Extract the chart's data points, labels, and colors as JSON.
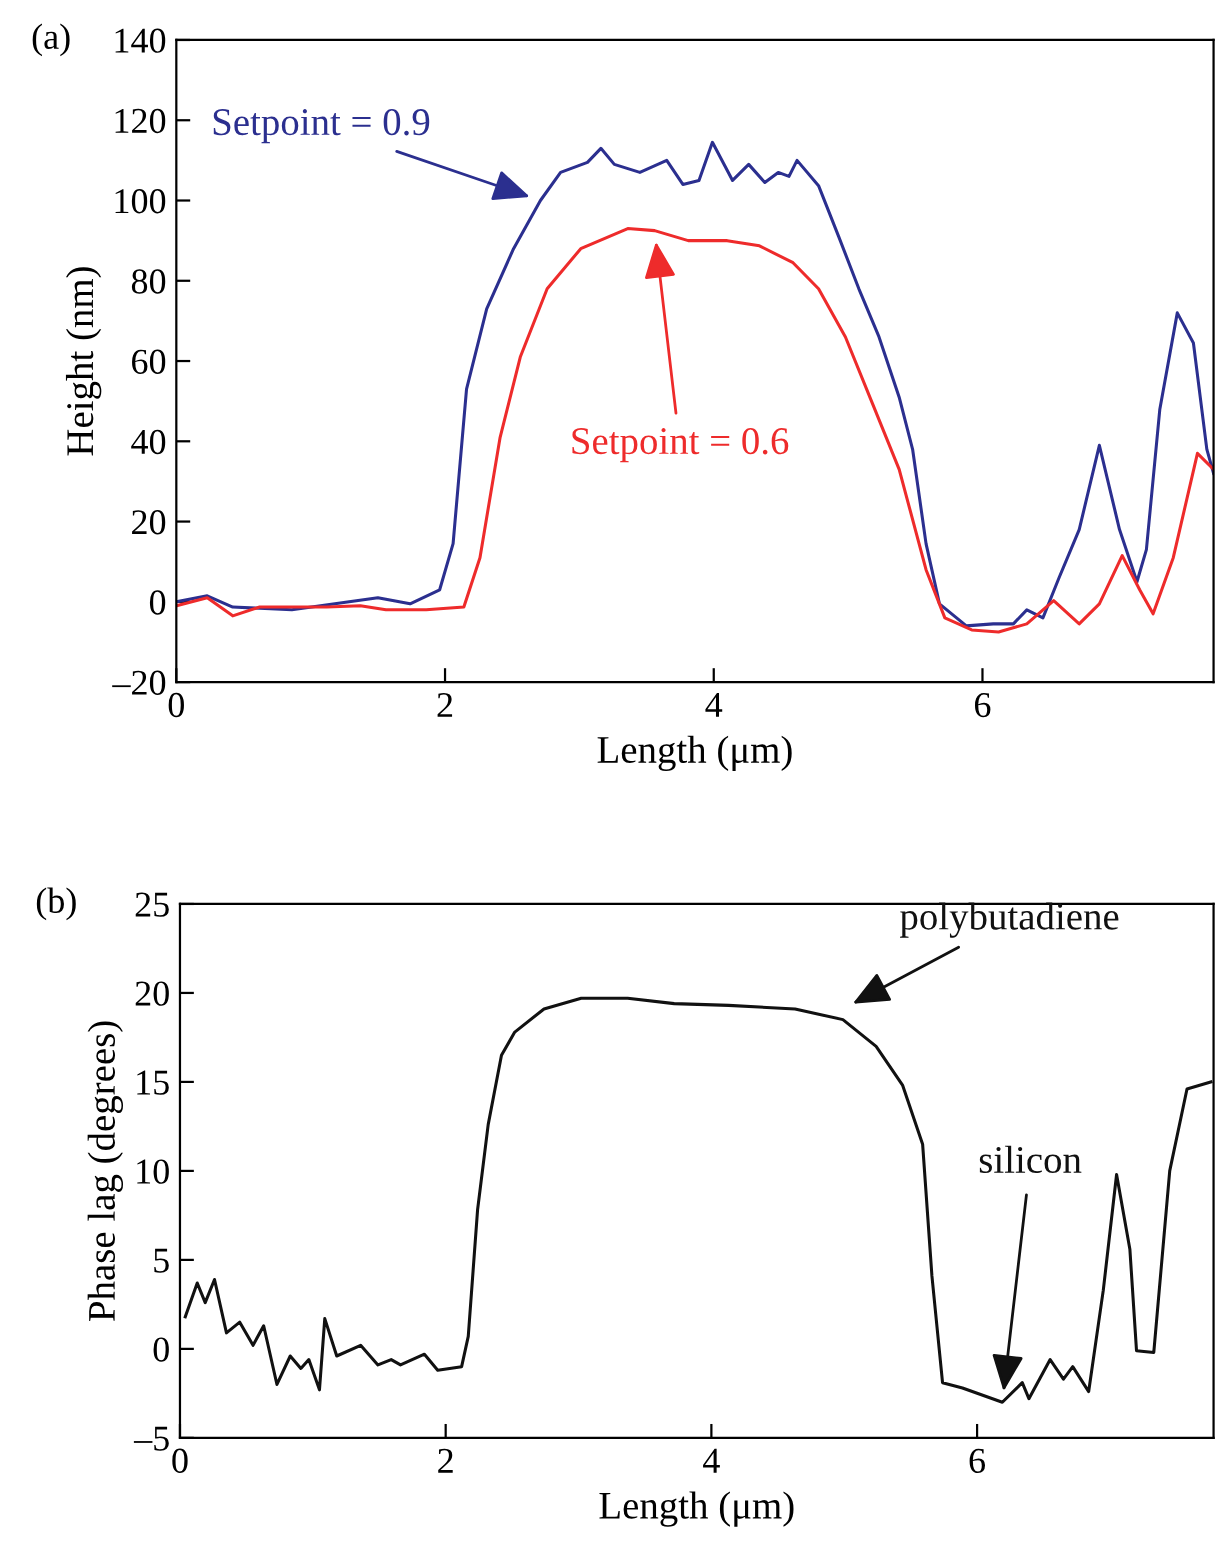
{
  "chart_data": [
    {
      "type": "line",
      "title": "(a)",
      "xlabel": "Length (μm)",
      "ylabel": "Height (nm)",
      "xlim": [
        0,
        7.72
      ],
      "ylim": [
        -20,
        140
      ],
      "xticks": [
        0,
        2,
        4,
        6
      ],
      "yticks": [
        {
          "value": -20,
          "label": "–20"
        },
        0,
        20,
        40,
        60,
        80,
        100,
        120,
        140
      ],
      "grid": false,
      "legend": false,
      "annotations": [
        {
          "text": "Setpoint = 0.9",
          "x": 2.71,
          "y": 100
        },
        {
          "text": "Setpoint = 0.6",
          "x": 3.56,
          "y": 92.5
        }
      ],
      "series": [
        {
          "color": "#2b2f8f",
          "x": [
            0,
            0.23,
            0.42,
            0.86,
            1.5,
            1.74,
            1.96,
            2.06,
            2.16,
            2.31,
            2.51,
            2.71,
            2.86,
            3.06,
            3.16,
            3.26,
            3.45,
            3.65,
            3.77,
            3.89,
            3.99,
            4.14,
            4.26,
            4.38,
            4.48,
            4.56,
            4.62,
            4.78,
            4.93,
            5.08,
            5.23,
            5.38,
            5.48,
            5.58,
            5.68,
            5.88,
            6.08,
            6.23,
            6.33,
            6.45,
            6.57,
            6.72,
            6.87,
            7.02,
            7.15,
            7.22,
            7.32,
            7.45,
            7.57,
            7.67,
            7.72
          ],
          "values": [
            0,
            1.5,
            -1.3,
            -2,
            1,
            -0.5,
            3,
            14.5,
            53,
            73,
            88,
            100,
            107,
            109.5,
            113,
            109,
            107,
            110,
            104,
            105,
            114.5,
            105,
            109,
            104.5,
            107,
            106,
            110,
            103.7,
            91,
            78,
            66,
            51,
            38,
            14.5,
            -0.5,
            -6,
            -5.5,
            -5.5,
            -2,
            -4,
            6,
            18,
            39,
            18,
            5,
            13,
            48,
            72,
            64.5,
            38,
            32
          ]
        },
        {
          "color": "#ee2b2b",
          "x": [
            0,
            0.23,
            0.42,
            0.62,
            1.12,
            1.37,
            1.56,
            1.86,
            2.14,
            2.26,
            2.41,
            2.56,
            2.76,
            3.01,
            3.36,
            3.56,
            3.81,
            4.1,
            4.34,
            4.59,
            4.78,
            4.98,
            5.18,
            5.38,
            5.58,
            5.72,
            5.92,
            6.12,
            6.33,
            6.53,
            6.72,
            6.87,
            7.04,
            7.17,
            7.27,
            7.42,
            7.6,
            7.72
          ],
          "values": [
            -1,
            1,
            -3.5,
            -1.3,
            -1.3,
            -1,
            -2,
            -2,
            -1.3,
            11,
            41,
            61,
            78,
            88,
            93,
            92.5,
            90,
            90,
            88.7,
            84.5,
            78,
            66,
            49.5,
            33,
            8,
            -4,
            -7,
            -7.5,
            -5.5,
            0.3,
            -5.5,
            -0.5,
            11.5,
            3,
            -3,
            11,
            37,
            33
          ]
        }
      ]
    },
    {
      "type": "line",
      "title": "(b)",
      "xlabel": "Length (μm)",
      "ylabel": "Phase lag (degrees)",
      "xlim": [
        0,
        7.78
      ],
      "ylim": [
        -5,
        25
      ],
      "xticks": [
        0,
        2,
        4,
        6
      ],
      "yticks": [
        {
          "value": -5,
          "label": "–5"
        },
        0,
        5,
        10,
        15,
        20,
        25
      ],
      "grid": false,
      "legend": false,
      "annotations": [
        {
          "text": "polybutadiene",
          "x": 4.99,
          "y": 19.1
        },
        {
          "text": "silicon",
          "x": 6.19,
          "y": -3
        }
      ],
      "series": [
        {
          "color": "#111111",
          "x": [
            0.04,
            0.13,
            0.19,
            0.26,
            0.35,
            0.45,
            0.55,
            0.63,
            0.73,
            0.83,
            0.91,
            0.97,
            1.05,
            1.09,
            1.18,
            1.36,
            1.49,
            1.59,
            1.66,
            1.84,
            1.94,
            2.12,
            2.17,
            2.24,
            2.32,
            2.42,
            2.52,
            2.74,
            3.02,
            3.37,
            3.72,
            4.13,
            4.63,
            4.99,
            5.24,
            5.44,
            5.59,
            5.66,
            5.74,
            5.89,
            6.19,
            6.34,
            6.39,
            6.55,
            6.65,
            6.72,
            6.84,
            6.95,
            7.05,
            7.15,
            7.2,
            7.33,
            7.45,
            7.58,
            7.76
          ],
          "values": [
            1.8,
            3.7,
            2.6,
            3.9,
            0.9,
            1.5,
            0.2,
            1.3,
            -2,
            -0.4,
            -1.1,
            -0.6,
            -2.3,
            1.7,
            -0.4,
            0.2,
            -0.9,
            -0.6,
            -0.9,
            -0.3,
            -1.2,
            -1,
            0.7,
            7.8,
            12.6,
            16.5,
            17.8,
            19.1,
            19.7,
            19.7,
            19.4,
            19.3,
            19.1,
            18.5,
            17,
            14.8,
            11.5,
            4.1,
            -1.9,
            -2.2,
            -3,
            -1.9,
            -2.8,
            -0.6,
            -1.7,
            -1.0,
            -2.4,
            3.3,
            9.8,
            5.6,
            -0.1,
            -0.2,
            10,
            14.6,
            15
          ]
        }
      ]
    }
  ]
}
